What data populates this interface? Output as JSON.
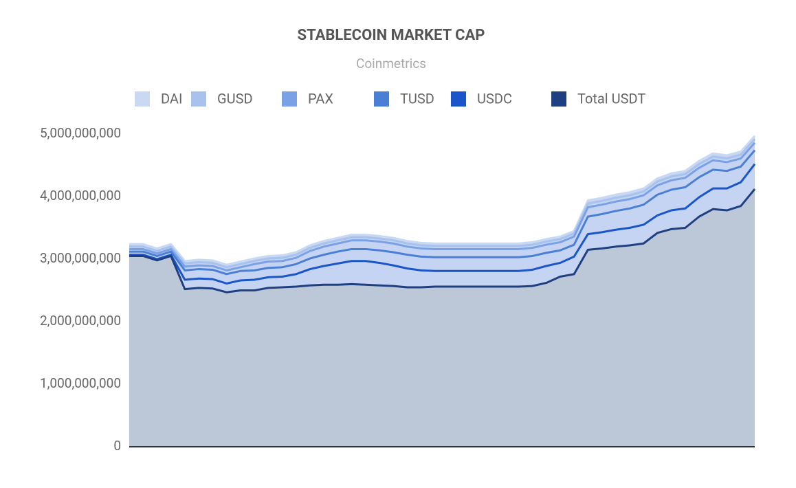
{
  "chart_data": {
    "type": "stacked_area",
    "title": "STABLECOIN MARKET CAP",
    "subtitle": "Coinmetrics",
    "categories": [
      null,
      null,
      null,
      null,
      null,
      null,
      null,
      null,
      null,
      null,
      null,
      null,
      null,
      null,
      null,
      null,
      null,
      null,
      null,
      null,
      null,
      null,
      null,
      null,
      null,
      null,
      null,
      null,
      null,
      null,
      null,
      null,
      null,
      null,
      null,
      null,
      null,
      null,
      null,
      null,
      null,
      null,
      null,
      null,
      null,
      null
    ],
    "series": [
      {
        "name": "DAI",
        "color": "#c9d9f4",
        "values": [
          40000000,
          40000000,
          40000000,
          40000000,
          40000000,
          40000000,
          40000000,
          40000000,
          40000000,
          40000000,
          40000000,
          40000000,
          40000000,
          40000000,
          40000000,
          40000000,
          40000000,
          40000000,
          40000000,
          40000000,
          40000000,
          40000000,
          40000000,
          40000000,
          40000000,
          40000000,
          40000000,
          40000000,
          40000000,
          40000000,
          40000000,
          40000000,
          40000000,
          50000000,
          50000000,
          50000000,
          50000000,
          50000000,
          50000000,
          50000000,
          50000000,
          50000000,
          50000000,
          50000000,
          50000000,
          50000000
        ]
      },
      {
        "name": "GUSD",
        "color": "#a8c2ee",
        "values": [
          40000000,
          40000000,
          40000000,
          40000000,
          50000000,
          50000000,
          50000000,
          50000000,
          50000000,
          50000000,
          50000000,
          50000000,
          50000000,
          50000000,
          50000000,
          50000000,
          50000000,
          50000000,
          50000000,
          50000000,
          50000000,
          50000000,
          50000000,
          50000000,
          50000000,
          50000000,
          50000000,
          50000000,
          50000000,
          50000000,
          50000000,
          50000000,
          50000000,
          60000000,
          60000000,
          60000000,
          60000000,
          60000000,
          60000000,
          60000000,
          60000000,
          60000000,
          60000000,
          60000000,
          60000000,
          60000000
        ]
      },
      {
        "name": "PAX",
        "color": "#7aa1e6",
        "values": [
          40000000,
          40000000,
          40000000,
          40000000,
          60000000,
          60000000,
          60000000,
          60000000,
          60000000,
          100000000,
          100000000,
          100000000,
          100000000,
          120000000,
          130000000,
          130000000,
          140000000,
          140000000,
          140000000,
          140000000,
          130000000,
          130000000,
          130000000,
          130000000,
          130000000,
          130000000,
          130000000,
          130000000,
          130000000,
          130000000,
          130000000,
          130000000,
          130000000,
          150000000,
          150000000,
          150000000,
          150000000,
          150000000,
          150000000,
          150000000,
          150000000,
          150000000,
          150000000,
          140000000,
          130000000,
          120000000
        ]
      },
      {
        "name": "TUSD",
        "color": "#4a7fd6",
        "values": [
          50000000,
          50000000,
          50000000,
          50000000,
          150000000,
          150000000,
          150000000,
          150000000,
          150000000,
          150000000,
          150000000,
          150000000,
          160000000,
          170000000,
          180000000,
          190000000,
          190000000,
          190000000,
          200000000,
          210000000,
          220000000,
          220000000,
          220000000,
          220000000,
          220000000,
          220000000,
          220000000,
          220000000,
          220000000,
          220000000,
          210000000,
          200000000,
          190000000,
          280000000,
          290000000,
          300000000,
          310000000,
          320000000,
          330000000,
          330000000,
          340000000,
          320000000,
          300000000,
          280000000,
          250000000,
          220000000
        ]
      },
      {
        "name": "USDC",
        "color": "#1a56c9",
        "values": [
          20000000,
          20000000,
          20000000,
          20000000,
          150000000,
          150000000,
          150000000,
          140000000,
          160000000,
          170000000,
          170000000,
          170000000,
          200000000,
          260000000,
          300000000,
          340000000,
          370000000,
          380000000,
          360000000,
          330000000,
          300000000,
          270000000,
          250000000,
          250000000,
          250000000,
          250000000,
          250000000,
          250000000,
          250000000,
          260000000,
          270000000,
          220000000,
          280000000,
          250000000,
          260000000,
          270000000,
          280000000,
          300000000,
          280000000,
          300000000,
          310000000,
          310000000,
          330000000,
          350000000,
          380000000,
          400000000
        ]
      },
      {
        "name": "Total USDT",
        "color": "#1f4080",
        "values": [
          3050000000,
          3050000000,
          2980000000,
          3050000000,
          2520000000,
          2540000000,
          2530000000,
          2470000000,
          2500000000,
          2500000000,
          2540000000,
          2550000000,
          2560000000,
          2580000000,
          2590000000,
          2590000000,
          2600000000,
          2590000000,
          2580000000,
          2570000000,
          2550000000,
          2550000000,
          2560000000,
          2560000000,
          2560000000,
          2560000000,
          2560000000,
          2560000000,
          2560000000,
          2570000000,
          2620000000,
          2720000000,
          2760000000,
          3150000000,
          3170000000,
          3200000000,
          3220000000,
          3250000000,
          3420000000,
          3480000000,
          3500000000,
          3680000000,
          3800000000,
          3780000000,
          3850000000,
          4120000000
        ]
      }
    ],
    "ylim": [
      0,
      5000000000
    ],
    "yticks": [
      0,
      {
        "value": 1000000000,
        "label": "1,000,000,000"
      },
      {
        "value": 2000000000,
        "label": "2,000,000,000"
      },
      {
        "value": 3000000000,
        "label": "3,000,000,000"
      },
      {
        "value": 4000000000,
        "label": "4,000,000,000"
      },
      {
        "value": 5000000000,
        "label": "5,000,000,000"
      }
    ]
  }
}
